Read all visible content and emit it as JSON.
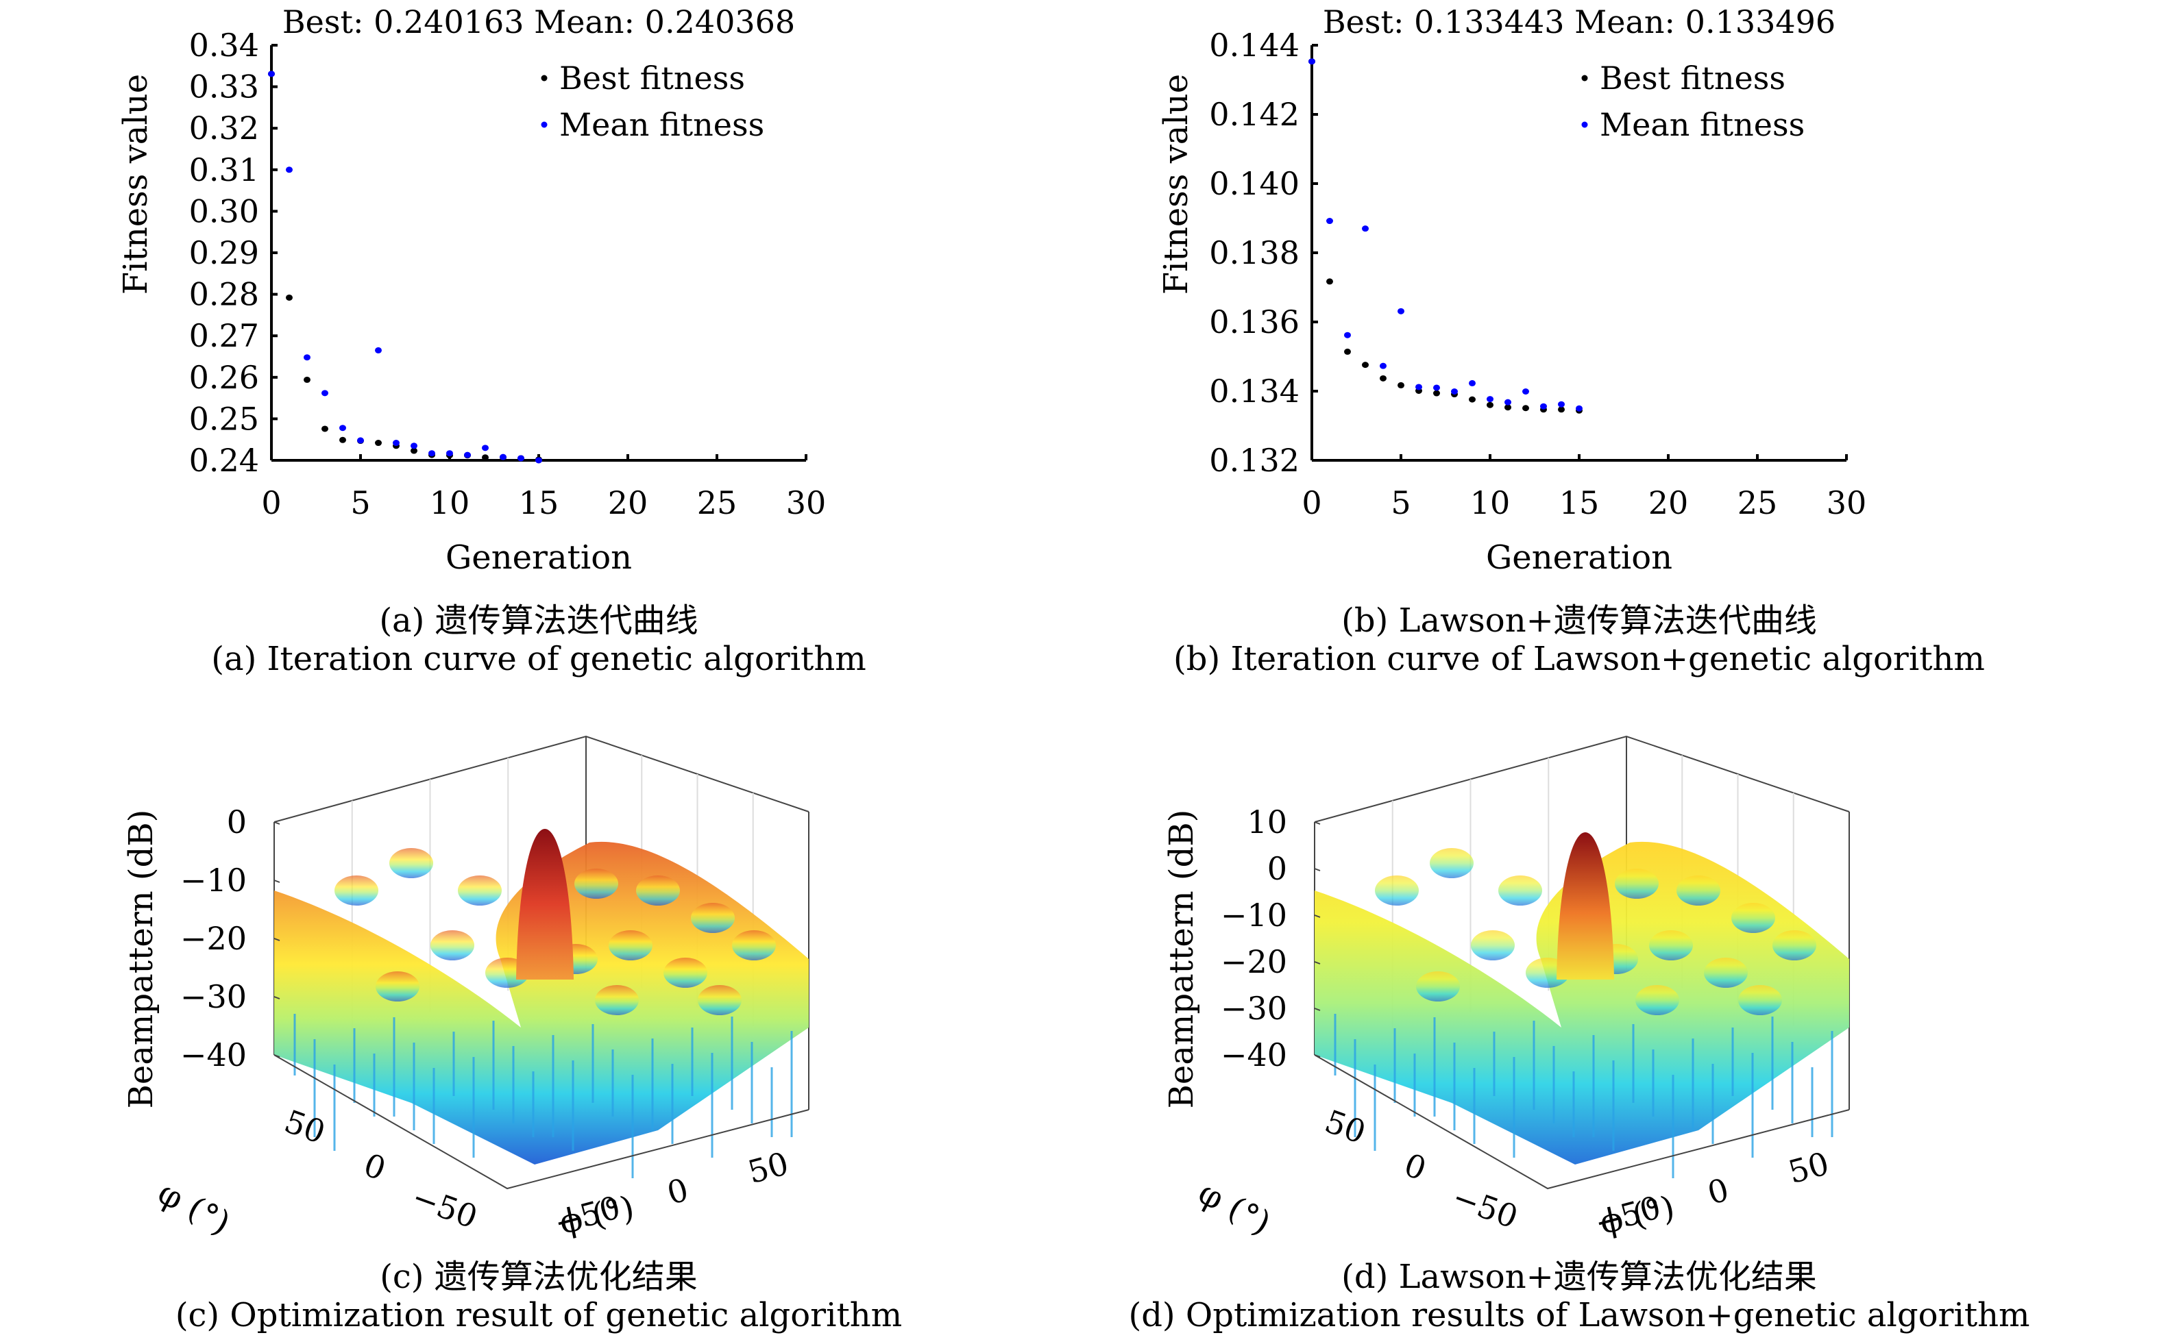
{
  "chart_data": [
    {
      "id": "a",
      "type": "scatter",
      "title": "Best: 0.240163 Mean: 0.240368",
      "xlabel": "Generation",
      "ylabel": "Fitness value",
      "xlim": [
        0,
        30
      ],
      "ylim": [
        0.24,
        0.34
      ],
      "xticks": [
        0,
        5,
        10,
        15,
        20,
        25,
        30
      ],
      "yticks": [
        0.24,
        0.25,
        0.26,
        0.27,
        0.28,
        0.29,
        0.3,
        0.31,
        0.32,
        0.33,
        0.34
      ],
      "ytick_labels": [
        "0.24",
        "0.25",
        "0.26",
        "0.27",
        "0.28",
        "0.29",
        "0.30",
        "0.31",
        "0.32",
        "0.33",
        "0.34"
      ],
      "grid": false,
      "legend": {
        "placement": "top-right",
        "entries": [
          "Best fitness",
          "Mean fitness"
        ]
      },
      "x": [
        0,
        1,
        2,
        3,
        4,
        5,
        6,
        7,
        8,
        9,
        10,
        11,
        12,
        13,
        14,
        15
      ],
      "series": [
        {
          "name": "Best fitness",
          "color": "#000000",
          "values": [
            0.3331,
            0.2792,
            0.2594,
            0.2476,
            0.2449,
            0.2447,
            0.2442,
            0.2435,
            0.2423,
            0.2413,
            0.2412,
            0.2412,
            0.2407,
            0.2407,
            0.2405,
            0.2402
          ]
        },
        {
          "name": "Mean fitness",
          "color": "#0000ff",
          "values": [
            0.3331,
            0.31,
            0.2648,
            0.2562,
            0.2478,
            0.2448,
            0.2665,
            0.2442,
            0.2435,
            0.2417,
            0.2417,
            0.2413,
            0.243,
            0.2408,
            0.2405,
            0.24
          ]
        }
      ],
      "caption_cn": "(a) 遗传算法迭代曲线",
      "caption_en": "(a) Iteration curve of genetic algorithm"
    },
    {
      "id": "b",
      "type": "scatter",
      "title": "Best: 0.133443 Mean: 0.133496",
      "xlabel": "Generation",
      "ylabel": "Fitness value",
      "xlim": [
        0,
        30
      ],
      "ylim": [
        0.132,
        0.144
      ],
      "xticks": [
        0,
        5,
        10,
        15,
        20,
        25,
        30
      ],
      "yticks": [
        0.132,
        0.134,
        0.136,
        0.138,
        0.14,
        0.142,
        0.144
      ],
      "ytick_labels": [
        "0.132",
        "0.134",
        "0.136",
        "0.138",
        "0.140",
        "0.142",
        "0.144"
      ],
      "grid": false,
      "legend": {
        "placement": "top-right",
        "entries": [
          "Best fitness",
          "Mean fitness"
        ]
      },
      "x": [
        0,
        1,
        2,
        3,
        4,
        5,
        6,
        7,
        8,
        9,
        10,
        11,
        12,
        13,
        14,
        15
      ],
      "series": [
        {
          "name": "Best fitness",
          "color": "#000000",
          "values": [
            0.14353,
            0.13717,
            0.13514,
            0.13476,
            0.13437,
            0.13417,
            0.13401,
            0.13394,
            0.13391,
            0.13376,
            0.1336,
            0.13353,
            0.13351,
            0.13347,
            0.13347,
            0.13344
          ]
        },
        {
          "name": "Mean fitness",
          "color": "#0000ff",
          "values": [
            0.14353,
            0.13892,
            0.13562,
            0.1387,
            0.13473,
            0.13631,
            0.13412,
            0.1341,
            0.13399,
            0.13423,
            0.13377,
            0.13368,
            0.13399,
            0.13356,
            0.13362,
            0.1335
          ]
        }
      ],
      "caption_cn": "(b) Lawson+遗传算法迭代曲线",
      "caption_en": "(b) Iteration curve of Lawson+genetic algorithm"
    },
    {
      "id": "c",
      "type": "surface",
      "zlabel": "Beampattern (dB)",
      "xlabel": "φ (°)",
      "ylabel": "ϕ (°)",
      "zlim": [
        -40,
        0
      ],
      "zticks": [
        0,
        -10,
        -20,
        -30,
        -40
      ],
      "ztick_labels": [
        "0",
        "−10",
        "−20",
        "−30",
        "−40"
      ],
      "left_axis_ticks": [
        "50",
        "0",
        "−50"
      ],
      "right_axis_ticks": [
        "−50",
        "0",
        "50"
      ],
      "peak_db": 0,
      "colormap": "jet",
      "caption_cn": "(c) 遗传算法优化结果",
      "caption_en": "(c) Optimization result of genetic algorithm"
    },
    {
      "id": "d",
      "type": "surface",
      "zlabel": "Beampattern (dB)",
      "xlabel": "φ (°)",
      "ylabel": "ϕ (°)",
      "zlim": [
        -40,
        10
      ],
      "zticks": [
        10,
        0,
        -10,
        -20,
        -30,
        -40
      ],
      "ztick_labels": [
        "10",
        "0",
        "−10",
        "−20",
        "−30",
        "−40"
      ],
      "left_axis_ticks": [
        "50",
        "0",
        "−50"
      ],
      "right_axis_ticks": [
        "−50",
        "0",
        "50"
      ],
      "peak_db": 7,
      "colormap": "jet",
      "caption_cn": "(d) Lawson+遗传算法优化结果",
      "caption_en": "(d) Optimization results of Lawson+genetic algorithm"
    }
  ]
}
